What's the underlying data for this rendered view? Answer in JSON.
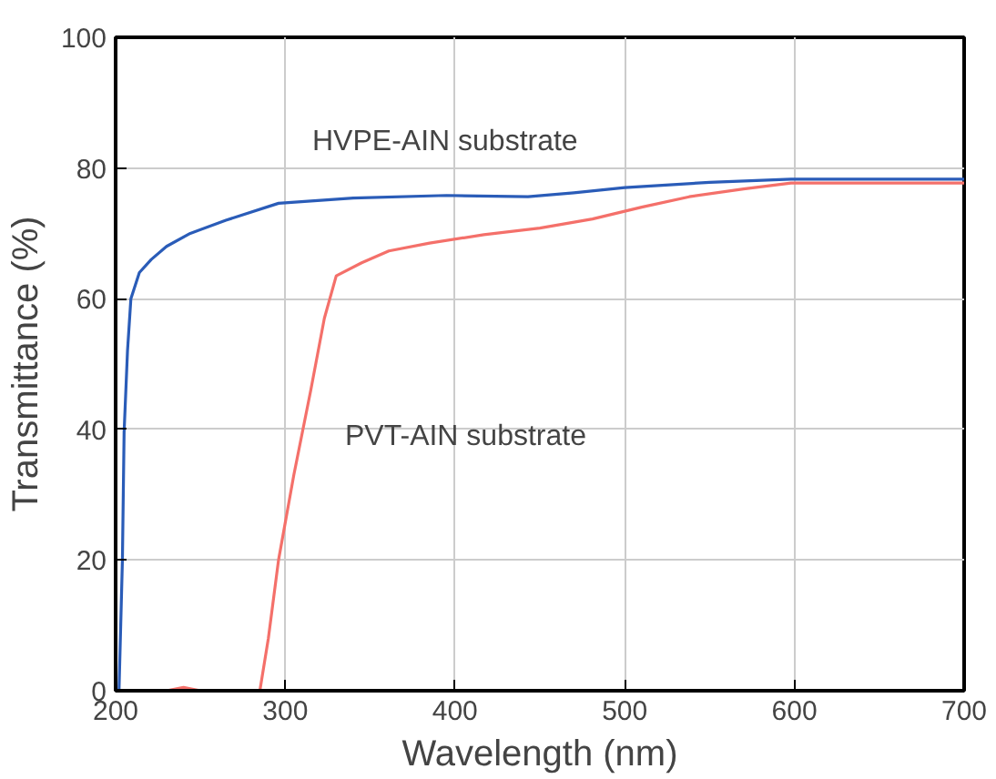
{
  "chart_data": {
    "type": "line",
    "xlabel": "Wavelength (nm)",
    "ylabel": "Transmittance (%)",
    "xlim": [
      200,
      700
    ],
    "ylim": [
      0,
      100
    ],
    "xticks": [
      200,
      300,
      400,
      500,
      600,
      700
    ],
    "yticks": [
      0,
      20,
      40,
      60,
      80,
      100
    ],
    "grid": true,
    "line_style": "solid",
    "series": [
      {
        "color": "#2a5cb8",
        "x": [
          200,
          202,
          204,
          205,
          207,
          209,
          214,
          221,
          230,
          244,
          265,
          296,
          340,
          395,
          443,
          470,
          500,
          550,
          598,
          650,
          700
        ],
        "values": [
          0,
          0,
          20,
          39.6,
          52,
          60,
          64,
          66,
          68,
          70,
          72,
          74.6,
          75.4,
          75.8,
          75.6,
          76.2,
          77,
          77.8,
          78.3,
          78.3,
          78.3
        ]
      },
      {
        "color": "#f4706a",
        "x": [
          200,
          230,
          240,
          250,
          285,
          290,
          296,
          305,
          315,
          323,
          330,
          345,
          361,
          385,
          417,
          450,
          481,
          510,
          538,
          570,
          598,
          650,
          700
        ],
        "values": [
          0,
          0,
          0.5,
          0,
          0,
          8,
          20,
          33,
          46,
          57,
          63.5,
          65.5,
          67.3,
          68.5,
          69.8,
          70.8,
          72.2,
          74,
          75.6,
          76.8,
          77.7,
          77.7,
          77.7
        ]
      }
    ],
    "annotations": [
      "HVPE-AIN substrate",
      "PVT-AIN substrate"
    ]
  }
}
